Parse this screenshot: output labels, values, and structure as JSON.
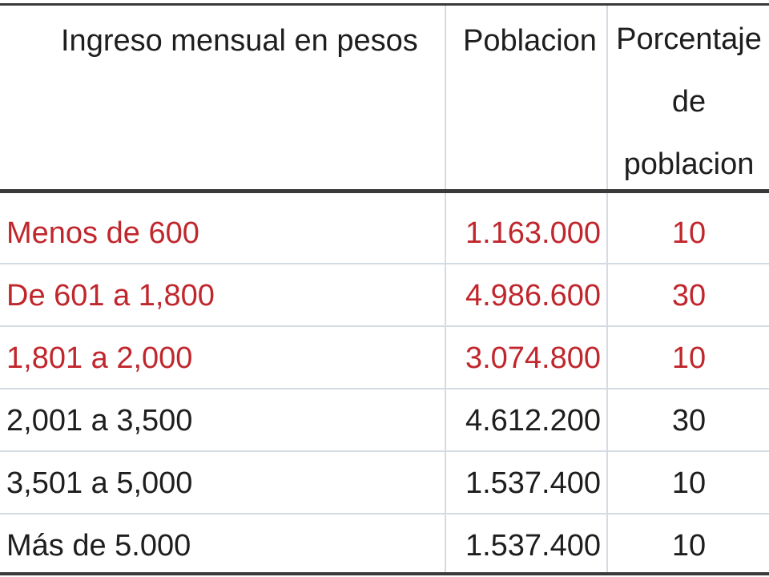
{
  "chart_data": {
    "type": "table",
    "columns": [
      "Ingreso mensual en pesos",
      "Poblacion",
      "Porcentaje de poblacion"
    ],
    "column3_lines": [
      "Porcentaje",
      "de",
      "poblacion"
    ],
    "rows": [
      {
        "ingreso": "Menos de 600",
        "poblacion": "1.163.000",
        "porcentaje": "10",
        "color": "#c0272d"
      },
      {
        "ingreso": "De 601 a 1,800",
        "poblacion": "4.986.600",
        "porcentaje": "30",
        "color": "#c0272d"
      },
      {
        "ingreso": "1,801 a 2,000",
        "poblacion": "3.074.800",
        "porcentaje": "10",
        "color": "#c0272d"
      },
      {
        "ingreso": "2,001 a 3,500",
        "poblacion": "4.612.200",
        "porcentaje": "30",
        "color": "#1e1e1e"
      },
      {
        "ingreso": "3,501 a 5,000",
        "poblacion": "1.537.400",
        "porcentaje": "10",
        "color": "#1e1e1e"
      },
      {
        "ingreso": "Más de 5.000",
        "poblacion": "1.537.400",
        "porcentaje": "10",
        "color": "#1e1e1e"
      }
    ]
  },
  "colors": {
    "highlight_text": "#c0272d",
    "normal_text": "#1e1e1e",
    "rule": "#3a3a3a",
    "gridline": "#d4dbe3"
  }
}
